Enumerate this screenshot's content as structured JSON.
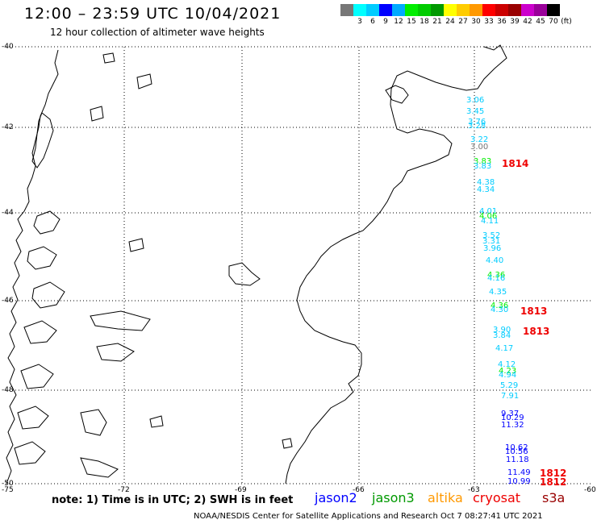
{
  "header": {
    "title": "12:00 – 23:59 UTC 10/04/2021",
    "subtitle": "12 hour collection of altimeter wave heights"
  },
  "scale": {
    "unit": "(ft)",
    "entries": [
      {
        "label": "",
        "color": "#777777"
      },
      {
        "label": "3",
        "color": "#00ffff"
      },
      {
        "label": "6",
        "color": "#00ccff"
      },
      {
        "label": "9",
        "color": "#0000ff"
      },
      {
        "label": "12",
        "color": "#00aaff"
      },
      {
        "label": "15",
        "color": "#00ee00"
      },
      {
        "label": "18",
        "color": "#00cc00"
      },
      {
        "label": "21",
        "color": "#009900"
      },
      {
        "label": "24",
        "color": "#ffff00"
      },
      {
        "label": "27",
        "color": "#ffcc00"
      },
      {
        "label": "30",
        "color": "#ff9900"
      },
      {
        "label": "33",
        "color": "#ff0000"
      },
      {
        "label": "36",
        "color": "#cc0000"
      },
      {
        "label": "39",
        "color": "#990000"
      },
      {
        "label": "42",
        "color": "#cc00cc"
      },
      {
        "label": "45",
        "color": "#990099"
      },
      {
        "label": "70",
        "color": "#000000"
      }
    ]
  },
  "map": {
    "lat_labels": [
      "-40",
      "-42",
      "-44",
      "-46",
      "-48",
      "-50"
    ],
    "lon_labels": [
      "-75",
      "-72",
      "-69",
      "-66",
      "-63",
      "-60"
    ],
    "observations": [
      {
        "v": "3.06",
        "c": "#00ccff"
      },
      {
        "v": "3.45",
        "c": "#00ccff"
      },
      {
        "v": "3.76",
        "c": "#00ccff"
      },
      {
        "v": "3.28",
        "c": "#00ccff"
      },
      {
        "v": "3.22",
        "c": "#00ccff"
      },
      {
        "v": "3.00",
        "c": "#777777"
      },
      {
        "v": "3.83",
        "c": "#00ee00"
      },
      {
        "v": "3.83",
        "c": "#00ccff"
      },
      {
        "v": "4.38",
        "c": "#00ccff"
      },
      {
        "v": "4.34",
        "c": "#00ccff"
      },
      {
        "v": "4.01",
        "c": "#00ccff"
      },
      {
        "v": "4.06",
        "c": "#00ee00"
      },
      {
        "v": "4.11",
        "c": "#00ccff"
      },
      {
        "v": "3.52",
        "c": "#00ccff"
      },
      {
        "v": "3.31",
        "c": "#00ccff"
      },
      {
        "v": "3.96",
        "c": "#00ccff"
      },
      {
        "v": "4.40",
        "c": "#00ccff"
      },
      {
        "v": "4.36",
        "c": "#00ee00"
      },
      {
        "v": "4.16",
        "c": "#00ccff"
      },
      {
        "v": "4.35",
        "c": "#00ccff"
      },
      {
        "v": "4.36",
        "c": "#00ee00"
      },
      {
        "v": "4.30",
        "c": "#00ccff"
      },
      {
        "v": "3.90",
        "c": "#00ccff"
      },
      {
        "v": "3.84",
        "c": "#00ccff"
      },
      {
        "v": "4.17",
        "c": "#00ccff"
      },
      {
        "v": "4.12",
        "c": "#00ccff"
      },
      {
        "v": "4.23",
        "c": "#00ee00"
      },
      {
        "v": "4.94",
        "c": "#00ccff"
      },
      {
        "v": "5.29",
        "c": "#00ccff"
      },
      {
        "v": "7.91",
        "c": "#00ccff"
      },
      {
        "v": "9.37",
        "c": "#0000ff"
      },
      {
        "v": "10.29",
        "c": "#0000ff"
      },
      {
        "v": "11.32",
        "c": "#0000ff"
      },
      {
        "v": "10.62",
        "c": "#0000ff"
      },
      {
        "v": "10.56",
        "c": "#0000ff"
      },
      {
        "v": "11.18",
        "c": "#0000ff"
      },
      {
        "v": "11.49",
        "c": "#0000ff"
      },
      {
        "v": "10.99",
        "c": "#0000ff"
      }
    ],
    "cycle_labels": [
      "1814",
      "1813",
      "1813",
      "1812",
      "1812"
    ]
  },
  "footer": {
    "note": "note: 1) Time is in UTC; 2) SWH is in feet",
    "satellites": [
      {
        "name": "jason2",
        "color": "#0000ff"
      },
      {
        "name": "jason3",
        "color": "#009900"
      },
      {
        "name": "altika",
        "color": "#ff9900"
      },
      {
        "name": "cryosat",
        "color": "#ee0000"
      },
      {
        "name": "s3a",
        "color": "#990000"
      }
    ],
    "credit": "NOAA/NESDIS Center for Satellite Applications and Research   Oct  7 08:27:41 UTC 2021"
  }
}
